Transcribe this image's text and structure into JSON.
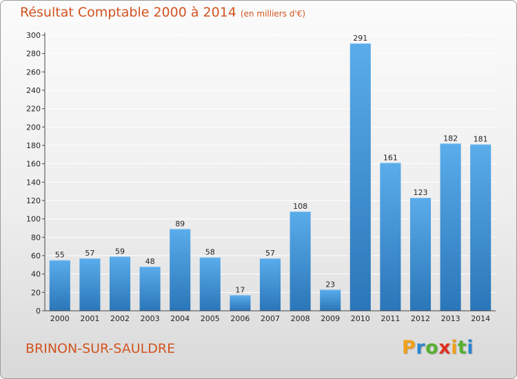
{
  "header": {
    "title": "Résultat Comptable 2000 à 2014",
    "subtitle": "(en milliers d'€)"
  },
  "footer": {
    "city": "BRINON-SUR-SAULDRE",
    "logo": {
      "letters": [
        "P",
        "r",
        "o",
        "x",
        "i",
        "t",
        "i"
      ],
      "colors": [
        "#f0a018",
        "#2a86d0",
        "#57b030",
        "#e03020",
        "#f0a018",
        "#57b030",
        "#2a86d0"
      ]
    }
  },
  "colors": {
    "bar_light": "#5aaceb",
    "bar_dark": "#2a76b8",
    "title": "#d2531f",
    "axis": "#444444",
    "grid": "#ffffff"
  },
  "chart_data": {
    "type": "bar",
    "title": "Résultat Comptable 2000 à 2014",
    "subtitle": "(en milliers d'€)",
    "xlabel": "",
    "ylabel": "",
    "categories": [
      "2000",
      "2001",
      "2002",
      "2003",
      "2004",
      "2005",
      "2006",
      "2007",
      "2008",
      "2009",
      "2010",
      "2011",
      "2012",
      "2013",
      "2014"
    ],
    "values": [
      55,
      57,
      59,
      48,
      89,
      58,
      17,
      57,
      108,
      23,
      291,
      161,
      123,
      182,
      181
    ],
    "ylim": [
      0,
      300
    ],
    "yticks": [
      0,
      20,
      40,
      60,
      80,
      100,
      120,
      140,
      160,
      180,
      200,
      220,
      240,
      260,
      280,
      300
    ],
    "grid": true,
    "legend": "none"
  }
}
